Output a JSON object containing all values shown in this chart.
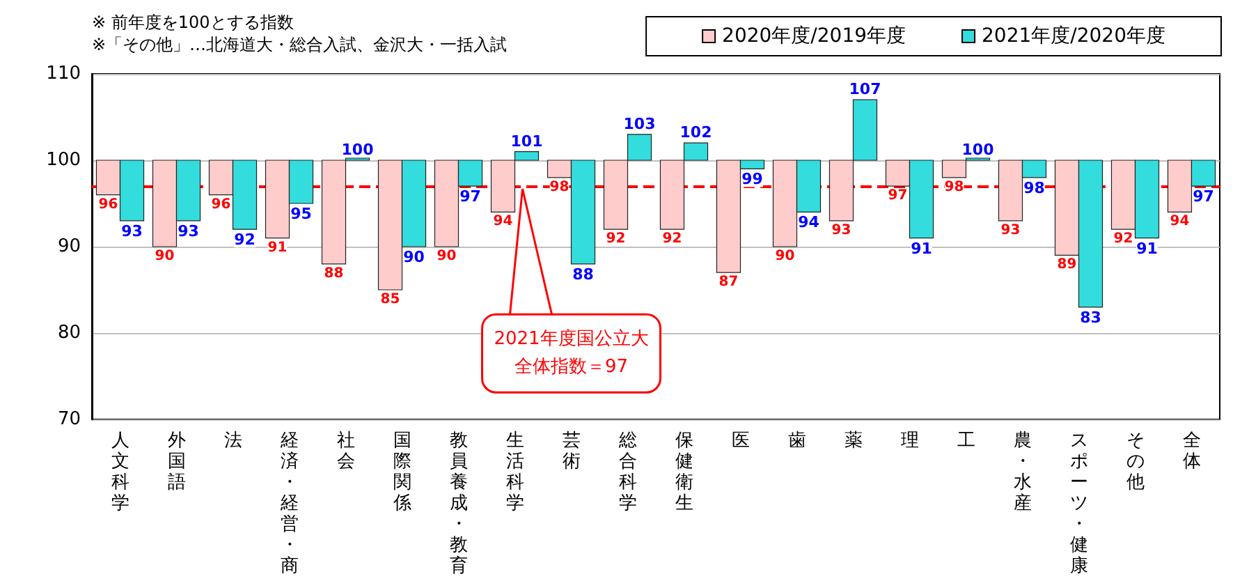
{
  "chart_data": {
    "type": "bar",
    "annotations": [
      "※ 前年度を100とする指数",
      "※「その他」…北海道大・総合入試、金沢大・一括入試"
    ],
    "categories": [
      "人文科学",
      "外国語",
      "法",
      "経済・経営・商",
      "社会",
      "国際関係",
      "教員養成・教育",
      "生活科学",
      "芸術",
      "総合科学",
      "保健衛生",
      "医",
      "歯",
      "薬",
      "理",
      "工",
      "農・水産",
      "スポーツ・健康",
      "その他",
      "全体"
    ],
    "series": [
      {
        "name": "2020年度/2019年度",
        "color": "#ffcccc",
        "base": [
          100,
          100,
          100,
          100,
          100,
          100,
          100,
          100,
          100,
          100,
          100,
          100,
          100,
          100,
          100,
          100,
          100,
          100,
          100,
          100
        ],
        "values": [
          -4,
          -10,
          -4,
          -9,
          -12,
          -15,
          -10,
          -6,
          -2,
          -8,
          -8,
          -13,
          -10,
          -7,
          -3,
          -2,
          -7,
          -11,
          -8,
          -6
        ],
        "value_labels": [
          "96",
          "90",
          "96",
          "91",
          "88",
          "85",
          "90",
          "94",
          "98",
          "92",
          "92",
          "87",
          "90",
          "93",
          "97",
          "98",
          "93",
          "89",
          "92",
          "94"
        ]
      },
      {
        "name": "2021年度/2020年度",
        "color": "#33dddd",
        "base": [
          100,
          100,
          100,
          100,
          100,
          100,
          100,
          100,
          100,
          100,
          100,
          100,
          100,
          100,
          100,
          100,
          100,
          100,
          100,
          100
        ],
        "values": [
          -7,
          -7,
          -8,
          -5,
          0,
          -10,
          -3,
          1,
          -12,
          3,
          2,
          -1,
          -6,
          7,
          -9,
          0,
          -2,
          -17,
          -9,
          -3
        ],
        "value_labels": [
          "93",
          "93",
          "92",
          "95",
          "100",
          "90",
          "97",
          "101",
          "88",
          "103",
          "102",
          "99",
          "94",
          "107",
          "91",
          "100",
          "98",
          "83",
          "91",
          "97"
        ]
      }
    ],
    "ylim": [
      70,
      110
    ],
    "yticks": [
      70,
      80,
      90,
      100,
      110
    ],
    "grid": "y",
    "legend": "top right",
    "ref_lines": [
      {
        "axis": "y",
        "value": 97,
        "label": "2021年度国公立大全体指数＝97",
        "color": "#ff0000",
        "line_style": "dashed"
      }
    ]
  }
}
